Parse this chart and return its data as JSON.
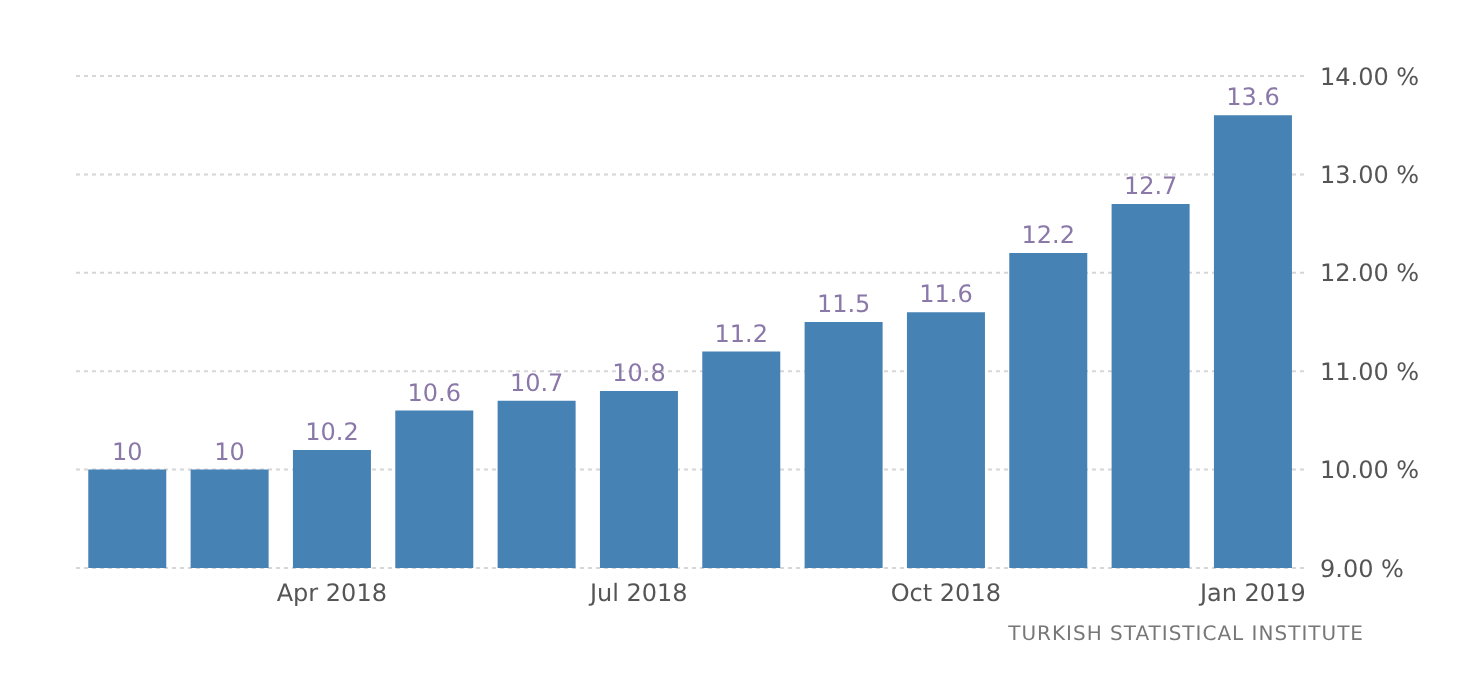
{
  "chart_data": {
    "type": "bar",
    "categories": [
      null,
      null,
      "Apr 2018",
      null,
      null,
      "Jul 2018",
      null,
      null,
      "Oct 2018",
      null,
      null,
      "Jan 2019"
    ],
    "values": [
      10,
      10,
      10.2,
      10.6,
      10.7,
      10.8,
      11.2,
      11.5,
      11.6,
      12.2,
      12.7,
      13.6
    ],
    "color": "#4682b4",
    "ylim": [
      9,
      14
    ],
    "yticks": [
      {
        "value": 9,
        "label": "9.00 %"
      },
      {
        "value": 10,
        "label": "10.00 %"
      },
      {
        "value": 11,
        "label": "11.00 %"
      },
      {
        "value": 12,
        "label": "12.00 %"
      },
      {
        "value": 13,
        "label": "13.00 %"
      },
      {
        "value": 14,
        "label": "14.00 %"
      }
    ],
    "grid": "y",
    "data_labels": true,
    "annotations": [
      "TURKISH STATISTICAL INSTITUTE"
    ]
  }
}
